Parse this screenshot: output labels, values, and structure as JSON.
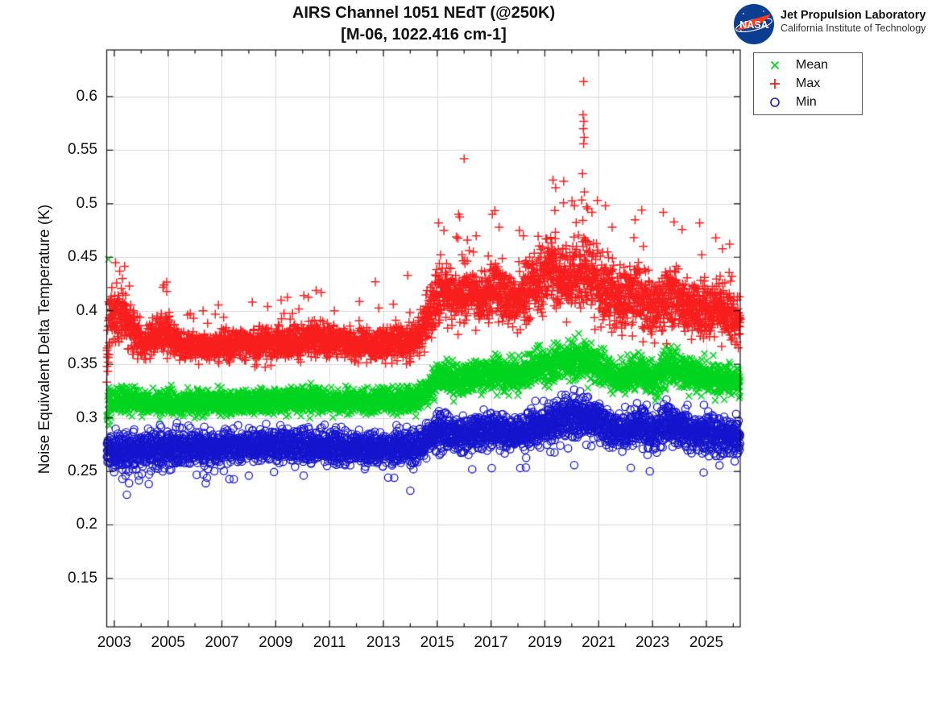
{
  "logo": {
    "nasa_text": "NASA",
    "org_line1": "Jet Propulsion Laboratory",
    "org_line2": "California Institute of Technology"
  },
  "chart_data": {
    "type": "scatter",
    "title": "AIRS Channel 1051 NEdT (@250K)",
    "subtitle": "[M-06, 1022.416 cm-1]",
    "xlabel": "",
    "ylabel": "Noise Equivalent Delta Temperature (K)",
    "xlim": [
      2002.72,
      2026.26
    ],
    "ylim": [
      0.1048,
      0.6436
    ],
    "grid": true,
    "grid_color": "#d9d9d9",
    "axis_color": "#111111",
    "legend_position": "outside-top-right",
    "legend_entries": [
      "Mean",
      "Max",
      "Min"
    ],
    "xticks": {
      "values": [
        2003,
        2005,
        2007,
        2009,
        2011,
        2013,
        2015,
        2017,
        2019,
        2021,
        2023,
        2025
      ],
      "labels": [
        "2003",
        "2005",
        "2007",
        "2009",
        "2011",
        "2013",
        "2015",
        "2017",
        "2019",
        "2021",
        "2023",
        "2025"
      ]
    },
    "xticks_minor": [
      2004,
      2006,
      2008,
      2010,
      2012,
      2014,
      2016,
      2018,
      2020,
      2022,
      2024,
      2026
    ],
    "yticks": {
      "values": [
        0.15,
        0.2,
        0.25,
        0.3,
        0.35,
        0.4,
        0.45,
        0.5,
        0.55,
        0.6
      ],
      "labels": [
        "0.15",
        "0.2",
        "0.25",
        "0.3",
        "0.35",
        "0.4",
        "0.45",
        "0.5",
        "0.55",
        "0.6"
      ]
    },
    "band_format": "[year, center_K, half_spread_K]",
    "outlier_format": "[year, value_K]",
    "density_points_per_series": 4200,
    "series": [
      {
        "name": "Mean",
        "marker": "x",
        "color": "#00d41e",
        "band": [
          [
            2002.72,
            0.306,
            0.02
          ],
          [
            2002.9,
            0.315,
            0.013
          ],
          [
            2004.0,
            0.316,
            0.012
          ],
          [
            2006.0,
            0.314,
            0.012
          ],
          [
            2008.0,
            0.315,
            0.012
          ],
          [
            2010.0,
            0.317,
            0.013
          ],
          [
            2012.0,
            0.315,
            0.012
          ],
          [
            2014.2,
            0.317,
            0.013
          ],
          [
            2014.8,
            0.33,
            0.015
          ],
          [
            2015.2,
            0.34,
            0.016
          ],
          [
            2016.0,
            0.336,
            0.015
          ],
          [
            2017.0,
            0.342,
            0.016
          ],
          [
            2018.0,
            0.339,
            0.016
          ],
          [
            2018.8,
            0.348,
            0.017
          ],
          [
            2019.5,
            0.352,
            0.018
          ],
          [
            2020.3,
            0.357,
            0.019
          ],
          [
            2021.0,
            0.348,
            0.017
          ],
          [
            2021.8,
            0.336,
            0.015
          ],
          [
            2022.4,
            0.344,
            0.016
          ],
          [
            2023.0,
            0.334,
            0.015
          ],
          [
            2023.6,
            0.35,
            0.017
          ],
          [
            2024.3,
            0.34,
            0.016
          ],
          [
            2025.0,
            0.338,
            0.015
          ],
          [
            2026.26,
            0.334,
            0.015
          ]
        ],
        "outliers": [
          [
            2002.78,
            0.448
          ]
        ]
      },
      {
        "name": "Max",
        "marker": "+",
        "color": "#f81e1e",
        "upper_tail": true,
        "band": [
          [
            2002.72,
            0.365,
            0.042
          ],
          [
            2002.85,
            0.395,
            0.028
          ],
          [
            2003.1,
            0.4,
            0.025
          ],
          [
            2003.6,
            0.386,
            0.02
          ],
          [
            2004.1,
            0.37,
            0.015
          ],
          [
            2004.6,
            0.378,
            0.018
          ],
          [
            2005.0,
            0.382,
            0.02
          ],
          [
            2005.5,
            0.368,
            0.014
          ],
          [
            2006.5,
            0.366,
            0.014
          ],
          [
            2007.5,
            0.368,
            0.015
          ],
          [
            2008.5,
            0.368,
            0.016
          ],
          [
            2009.5,
            0.37,
            0.016
          ],
          [
            2010.3,
            0.374,
            0.016
          ],
          [
            2011.5,
            0.37,
            0.015
          ],
          [
            2012.5,
            0.368,
            0.015
          ],
          [
            2013.5,
            0.37,
            0.016
          ],
          [
            2014.2,
            0.372,
            0.016
          ],
          [
            2014.7,
            0.398,
            0.026
          ],
          [
            2015.1,
            0.422,
            0.03
          ],
          [
            2015.6,
            0.412,
            0.026
          ],
          [
            2016.1,
            0.42,
            0.03
          ],
          [
            2016.6,
            0.408,
            0.026
          ],
          [
            2017.1,
            0.424,
            0.03
          ],
          [
            2017.6,
            0.406,
            0.026
          ],
          [
            2018.2,
            0.416,
            0.028
          ],
          [
            2018.8,
            0.428,
            0.03
          ],
          [
            2019.3,
            0.434,
            0.032
          ],
          [
            2019.9,
            0.428,
            0.032
          ],
          [
            2020.4,
            0.438,
            0.034
          ],
          [
            2021.0,
            0.425,
            0.033
          ],
          [
            2021.7,
            0.405,
            0.026
          ],
          [
            2022.4,
            0.416,
            0.03
          ],
          [
            2023.0,
            0.402,
            0.027
          ],
          [
            2023.6,
            0.414,
            0.03
          ],
          [
            2024.3,
            0.404,
            0.028
          ],
          [
            2025.0,
            0.4,
            0.026
          ],
          [
            2025.7,
            0.4,
            0.026
          ],
          [
            2026.26,
            0.396,
            0.026
          ]
        ],
        "outliers": [
          [
            2003.05,
            0.445
          ],
          [
            2003.2,
            0.437
          ],
          [
            2003.3,
            0.43
          ],
          [
            2004.85,
            0.424
          ],
          [
            2004.95,
            0.418
          ],
          [
            2006.3,
            0.4
          ],
          [
            2008.7,
            0.404
          ],
          [
            2009.2,
            0.41
          ],
          [
            2010.5,
            0.419
          ],
          [
            2012.7,
            0.427
          ],
          [
            2013.9,
            0.433
          ],
          [
            2015.05,
            0.482
          ],
          [
            2015.25,
            0.475
          ],
          [
            2016.0,
            0.542
          ],
          [
            2016.45,
            0.47
          ],
          [
            2017.05,
            0.49
          ],
          [
            2017.3,
            0.478
          ],
          [
            2018.2,
            0.47
          ],
          [
            2019.3,
            0.522
          ],
          [
            2019.4,
            0.515
          ],
          [
            2019.7,
            0.521
          ],
          [
            2020.1,
            0.498
          ],
          [
            2020.44,
            0.614
          ],
          [
            2020.42,
            0.583
          ],
          [
            2020.45,
            0.577
          ],
          [
            2020.43,
            0.57
          ],
          [
            2020.46,
            0.562
          ],
          [
            2020.44,
            0.556
          ],
          [
            2020.4,
            0.528
          ],
          [
            2020.47,
            0.511
          ],
          [
            2020.55,
            0.497
          ],
          [
            2020.75,
            0.492
          ],
          [
            2020.95,
            0.503
          ],
          [
            2021.25,
            0.498
          ],
          [
            2021.5,
            0.478
          ],
          [
            2022.35,
            0.485
          ],
          [
            2022.6,
            0.494
          ],
          [
            2023.4,
            0.492
          ],
          [
            2023.8,
            0.483
          ],
          [
            2024.1,
            0.476
          ],
          [
            2024.75,
            0.482
          ],
          [
            2025.35,
            0.468
          ],
          [
            2025.6,
            0.458
          ]
        ]
      },
      {
        "name": "Min",
        "marker": "o",
        "color": "#1616cf",
        "lower_tail": true,
        "band": [
          [
            2002.72,
            0.27,
            0.017
          ],
          [
            2003.3,
            0.267,
            0.019
          ],
          [
            2004.5,
            0.271,
            0.017
          ],
          [
            2006.0,
            0.273,
            0.016
          ],
          [
            2008.0,
            0.274,
            0.016
          ],
          [
            2010.0,
            0.274,
            0.016
          ],
          [
            2012.0,
            0.272,
            0.015
          ],
          [
            2014.2,
            0.272,
            0.016
          ],
          [
            2015.0,
            0.287,
            0.017
          ],
          [
            2016.0,
            0.283,
            0.016
          ],
          [
            2017.0,
            0.289,
            0.017
          ],
          [
            2018.0,
            0.286,
            0.016
          ],
          [
            2019.0,
            0.294,
            0.019
          ],
          [
            2019.8,
            0.3,
            0.021
          ],
          [
            2020.4,
            0.301,
            0.021
          ],
          [
            2021.0,
            0.295,
            0.02
          ],
          [
            2021.8,
            0.286,
            0.017
          ],
          [
            2022.5,
            0.293,
            0.019
          ],
          [
            2023.0,
            0.286,
            0.017
          ],
          [
            2023.6,
            0.296,
            0.02
          ],
          [
            2024.3,
            0.288,
            0.018
          ],
          [
            2025.0,
            0.287,
            0.018
          ],
          [
            2026.26,
            0.283,
            0.018
          ]
        ],
        "outliers": [
          [
            2003.3,
            0.243
          ],
          [
            2003.55,
            0.239
          ],
          [
            2003.9,
            0.246
          ],
          [
            2004.8,
            0.25
          ],
          [
            2006.4,
            0.239
          ],
          [
            2006.9,
            0.259
          ],
          [
            2008.0,
            0.246
          ],
          [
            2013.4,
            0.244
          ],
          [
            2014.0,
            0.232
          ],
          [
            2016.3,
            0.252
          ],
          [
            2022.9,
            0.25
          ],
          [
            2024.9,
            0.249
          ]
        ]
      }
    ]
  }
}
